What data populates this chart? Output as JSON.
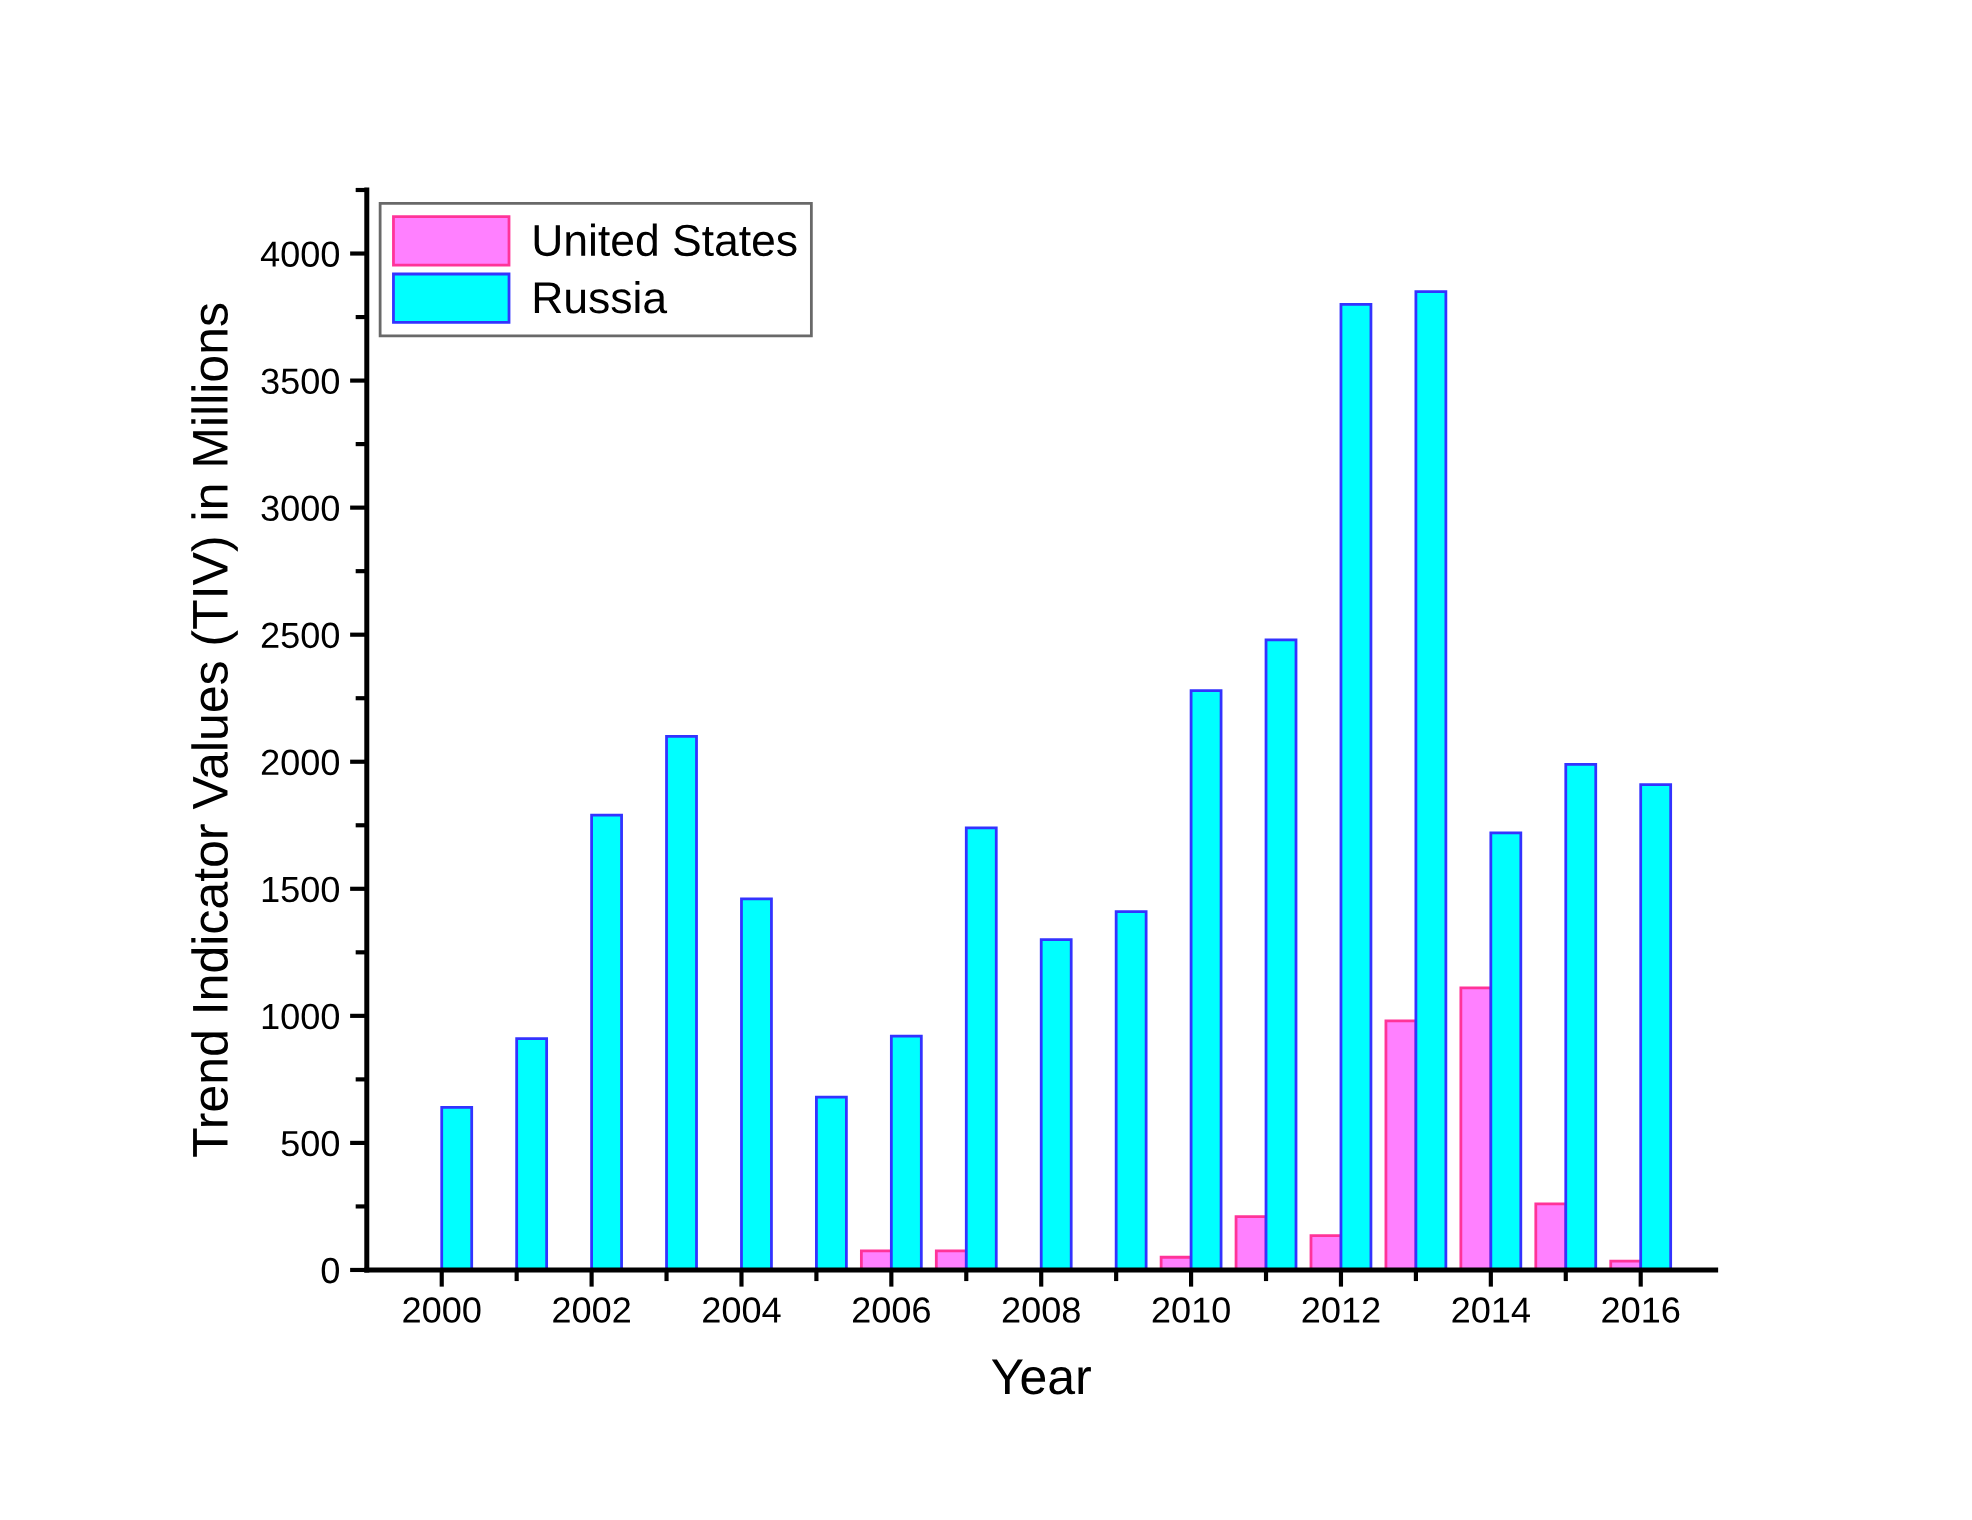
{
  "chart_data": {
    "type": "bar",
    "xlabel": "Year",
    "ylabel": "Trend Indicator Values (TIV) in Millions",
    "x": [
      2000,
      2001,
      2002,
      2003,
      2004,
      2005,
      2006,
      2007,
      2008,
      2009,
      2010,
      2011,
      2012,
      2013,
      2014,
      2015,
      2016
    ],
    "series": [
      {
        "name": "United States",
        "color": "#ff80ff",
        "values": [
          null,
          null,
          null,
          null,
          null,
          null,
          75,
          75,
          null,
          null,
          50,
          210,
          135,
          980,
          1110,
          260,
          35
        ]
      },
      {
        "name": "Russia",
        "color": "#00ffff",
        "values": [
          640,
          910,
          1790,
          2100,
          1460,
          680,
          920,
          1740,
          1300,
          1410,
          2280,
          2480,
          3800,
          3850,
          1720,
          1990,
          1910
        ]
      }
    ],
    "xlim": [
      1999,
      2017
    ],
    "xticks": [
      2000,
      {
        "value": 2001,
        "label": null
      },
      2002,
      {
        "value": 2003,
        "label": null
      },
      2004,
      {
        "value": 2005,
        "label": null
      },
      2006,
      {
        "value": 2007,
        "label": null
      },
      2008,
      {
        "value": 2009,
        "label": null
      },
      2010,
      {
        "value": 2011,
        "label": null
      },
      2012,
      {
        "value": 2013,
        "label": null
      },
      2014,
      {
        "value": 2015,
        "label": null
      },
      2016
    ],
    "ylim": [
      0,
      4250
    ],
    "yticks": [
      0,
      {
        "value": 250,
        "label": null
      },
      500,
      {
        "value": 750,
        "label": null
      },
      1000,
      {
        "value": 1250,
        "label": null
      },
      1500,
      {
        "value": 1750,
        "label": null
      },
      2000,
      {
        "value": 2250,
        "label": null
      },
      2500,
      {
        "value": 2750,
        "label": null
      },
      3000,
      {
        "value": 3250,
        "label": null
      },
      3500,
      {
        "value": 3750,
        "label": null
      },
      4000,
      {
        "value": 4250,
        "label": null
      }
    ],
    "grid": false,
    "legend": "top left"
  }
}
